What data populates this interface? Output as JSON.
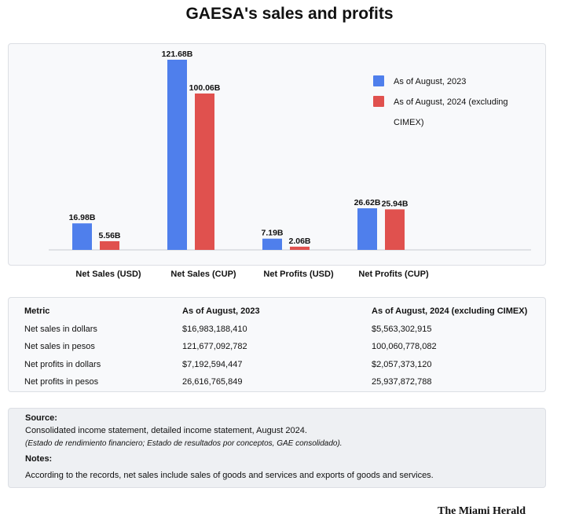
{
  "title": "GAESA's sales and profits",
  "chart_data": {
    "type": "bar",
    "categories": [
      "Net Sales (USD)",
      "Net Sales (CUP)",
      "Net Profits (USD)",
      "Net Profits (CUP)"
    ],
    "series": [
      {
        "name": "As of August, 2023",
        "values": [
          16.98,
          121.68,
          7.19,
          26.62
        ],
        "labels": [
          "16.98B",
          "121.68B",
          "7.19B",
          "26.62B"
        ],
        "color": "#4f7fec"
      },
      {
        "name": "As of August, 2024 (excluding CIMEX)",
        "values": [
          5.56,
          100.06,
          2.06,
          25.94
        ],
        "labels": [
          "5.56B",
          "100.06B",
          "2.06B",
          "25.94B"
        ],
        "color": "#e0514e"
      }
    ],
    "legend": {
      "position": "top-right",
      "lines": [
        [
          "As of August, 2023"
        ],
        [
          "As of August, 2024 (excluding",
          "CIMEX)"
        ]
      ]
    },
    "ylim": [
      0,
      121.68
    ],
    "grid": false
  },
  "table": {
    "headers": [
      "Metric",
      "As of August, 2023",
      "As of August, 2024 (excluding CIMEX)"
    ],
    "rows": [
      [
        "Net sales in dollars",
        "$16,983,188,410",
        "$5,563,302,915"
      ],
      [
        "Net sales in pesos",
        "121,677,092,782",
        "100,060,778,082"
      ],
      [
        "Net profits in dollars",
        "$7,192,594,447",
        "$2,057,373,120"
      ],
      [
        "Net profits in pesos",
        "26,616,765,849",
        "25,937,872,788"
      ]
    ]
  },
  "notes": {
    "source_heading": "Source:",
    "source_text": "Consolidated income statement, detailed income statement, August 2024.",
    "source_italic": "(Estado de rendimiento financiero; Estado de resultados por conceptos, GAE consolidado).",
    "notes_heading": "Notes:",
    "notes_text": "According to the records, net sales include sales of goods and services and exports of goods and services."
  },
  "credit": "The Miami Herald"
}
